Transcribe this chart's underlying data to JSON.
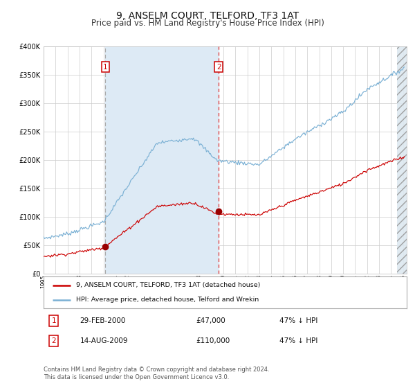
{
  "title": "9, ANSELM COURT, TELFORD, TF3 1AT",
  "subtitle": "Price paid vs. HM Land Registry's House Price Index (HPI)",
  "title_fontsize": 10,
  "subtitle_fontsize": 8.5,
  "bg_color": "#ffffff",
  "plot_bg_color": "#ffffff",
  "grid_color": "#cccccc",
  "year_start": 1995,
  "year_end": 2025,
  "ylim": [
    0,
    400000
  ],
  "yticks": [
    0,
    50000,
    100000,
    150000,
    200000,
    250000,
    300000,
    350000,
    400000
  ],
  "sale1_year": 2000.165,
  "sale1_price": 47000,
  "sale1_date": "29-FEB-2000",
  "sale1_pct": "47%",
  "sale2_year": 2009.62,
  "sale2_price": 110000,
  "sale2_date": "14-AUG-2009",
  "sale2_pct": "47%",
  "red_line_color": "#cc0000",
  "blue_line_color": "#7ab0d4",
  "shade_color": "#ddeaf5",
  "marker_color": "#990000",
  "vline1_color": "#aaaaaa",
  "vline2_color": "#dd3333",
  "box_color": "#cc0000",
  "legend_label_red": "9, ANSELM COURT, TELFORD, TF3 1AT (detached house)",
  "legend_label_blue": "HPI: Average price, detached house, Telford and Wrekin",
  "footer": "Contains HM Land Registry data © Crown copyright and database right 2024.\nThis data is licensed under the Open Government Licence v3.0.",
  "footer_fontsize": 6.0
}
